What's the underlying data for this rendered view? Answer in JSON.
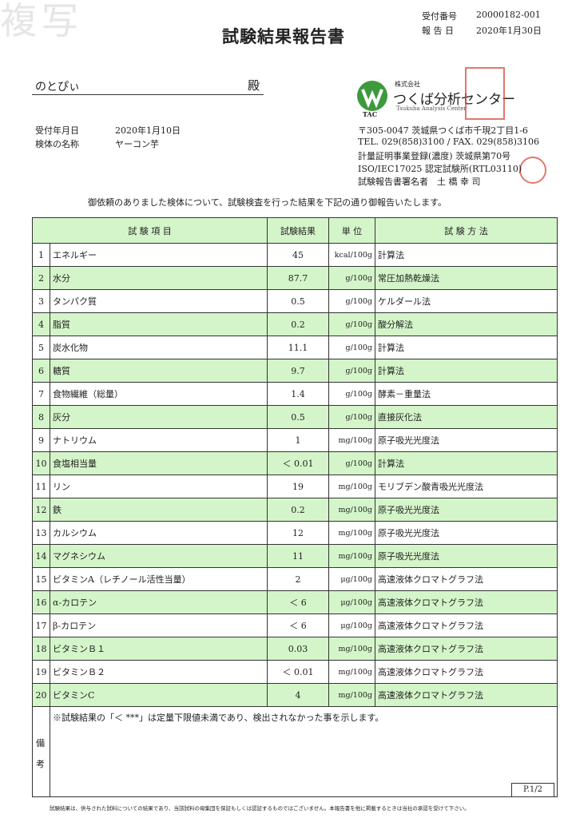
{
  "header": {
    "watermark": "複写",
    "title": "試験結果報告書",
    "receipt_no_label": "受付番号",
    "receipt_no": "20000182-001",
    "report_date_label": "報 告 日",
    "report_date": "2020年1月30日"
  },
  "addressee": {
    "name": "のとぴぃ",
    "honorific": "殿"
  },
  "info": {
    "received_label": "受付年月日",
    "received": "2020年1月10日",
    "sample_label": "検体の名称",
    "sample": "ヤーコン芋"
  },
  "company": {
    "logo_sub": "TAC",
    "prefix": "株式会社",
    "name": "つくば分析センター",
    "name_en": "Tsukuba Analysis Center",
    "address": "〒305-0047 茨城県つくば市千現2丁目1-6",
    "tel": "TEL. 029(858)3100 / FAX. 029(858)3106",
    "registration": "計量証明事業登録(濃度) 茨城県第70号",
    "iso": "ISO/IEC17025 認定試験所(RTL03110)",
    "signer": "試験報告書署名者　土 橋 幸 司"
  },
  "intro": "御依頼のありました検体について、試験検査を行った結果を下記の通り御報告いたします。",
  "table": {
    "headers": [
      "試 験 項 目",
      "試験結果",
      "単 位",
      "試 験 方 法"
    ],
    "rows": [
      [
        "1",
        "エネルギー",
        "45",
        "kcal/100g",
        "計算法"
      ],
      [
        "2",
        "水分",
        "87.7",
        "g/100g",
        "常圧加熱乾燥法"
      ],
      [
        "3",
        "タンパク質",
        "0.5",
        "g/100g",
        "ケルダール法"
      ],
      [
        "4",
        "脂質",
        "0.2",
        "g/100g",
        "酸分解法"
      ],
      [
        "5",
        "炭水化物",
        "11.1",
        "g/100g",
        "計算法"
      ],
      [
        "6",
        "糖質",
        "9.7",
        "g/100g",
        "計算法"
      ],
      [
        "7",
        "食物繊維（総量）",
        "1.4",
        "g/100g",
        "酵素－重量法"
      ],
      [
        "8",
        "灰分",
        "0.5",
        "g/100g",
        "直接灰化法"
      ],
      [
        "9",
        "ナトリウム",
        "1",
        "mg/100g",
        "原子吸光光度法"
      ],
      [
        "10",
        "食塩相当量",
        "＜ 0.01",
        "g/100g",
        "計算法"
      ],
      [
        "11",
        "リン",
        "19",
        "mg/100g",
        "モリブデン酸青吸光光度法"
      ],
      [
        "12",
        "鉄",
        "0.2",
        "mg/100g",
        "原子吸光光度法"
      ],
      [
        "13",
        "カルシウム",
        "12",
        "mg/100g",
        "原子吸光光度法"
      ],
      [
        "14",
        "マグネシウム",
        "11",
        "mg/100g",
        "原子吸光光度法"
      ],
      [
        "15",
        "ビタミンA（レチノール活性当量）",
        "2",
        "μg/100g",
        "高速液体クロマトグラフ法"
      ],
      [
        "16",
        "α-カロテン",
        "＜ 6",
        "μg/100g",
        "高速液体クロマトグラフ法"
      ],
      [
        "17",
        "β-カロテン",
        "＜ 6",
        "μg/100g",
        "高速液体クロマトグラフ法"
      ],
      [
        "18",
        "ビタミンＢ１",
        "0.03",
        "mg/100g",
        "高速液体クロマトグラフ法"
      ],
      [
        "19",
        "ビタミンＢ２",
        "＜ 0.01",
        "mg/100g",
        "高速液体クロマトグラフ法"
      ],
      [
        "20",
        "ビタミンC",
        "4",
        "mg/100g",
        "高速液体クロマトグラフ法"
      ]
    ],
    "remarks_label": "備考",
    "remarks": "※試験結果の「＜ ***」は定量下限値未満であり、検出されなかった事を示します。"
  },
  "page": "P.1/2",
  "footer": "試験結果は、供与された試料についての結果であり、当該試料の母集団を保証もしくは認証するものではございません。本報告書を他に掲載するときは当社の承認を受けて下さい。"
}
